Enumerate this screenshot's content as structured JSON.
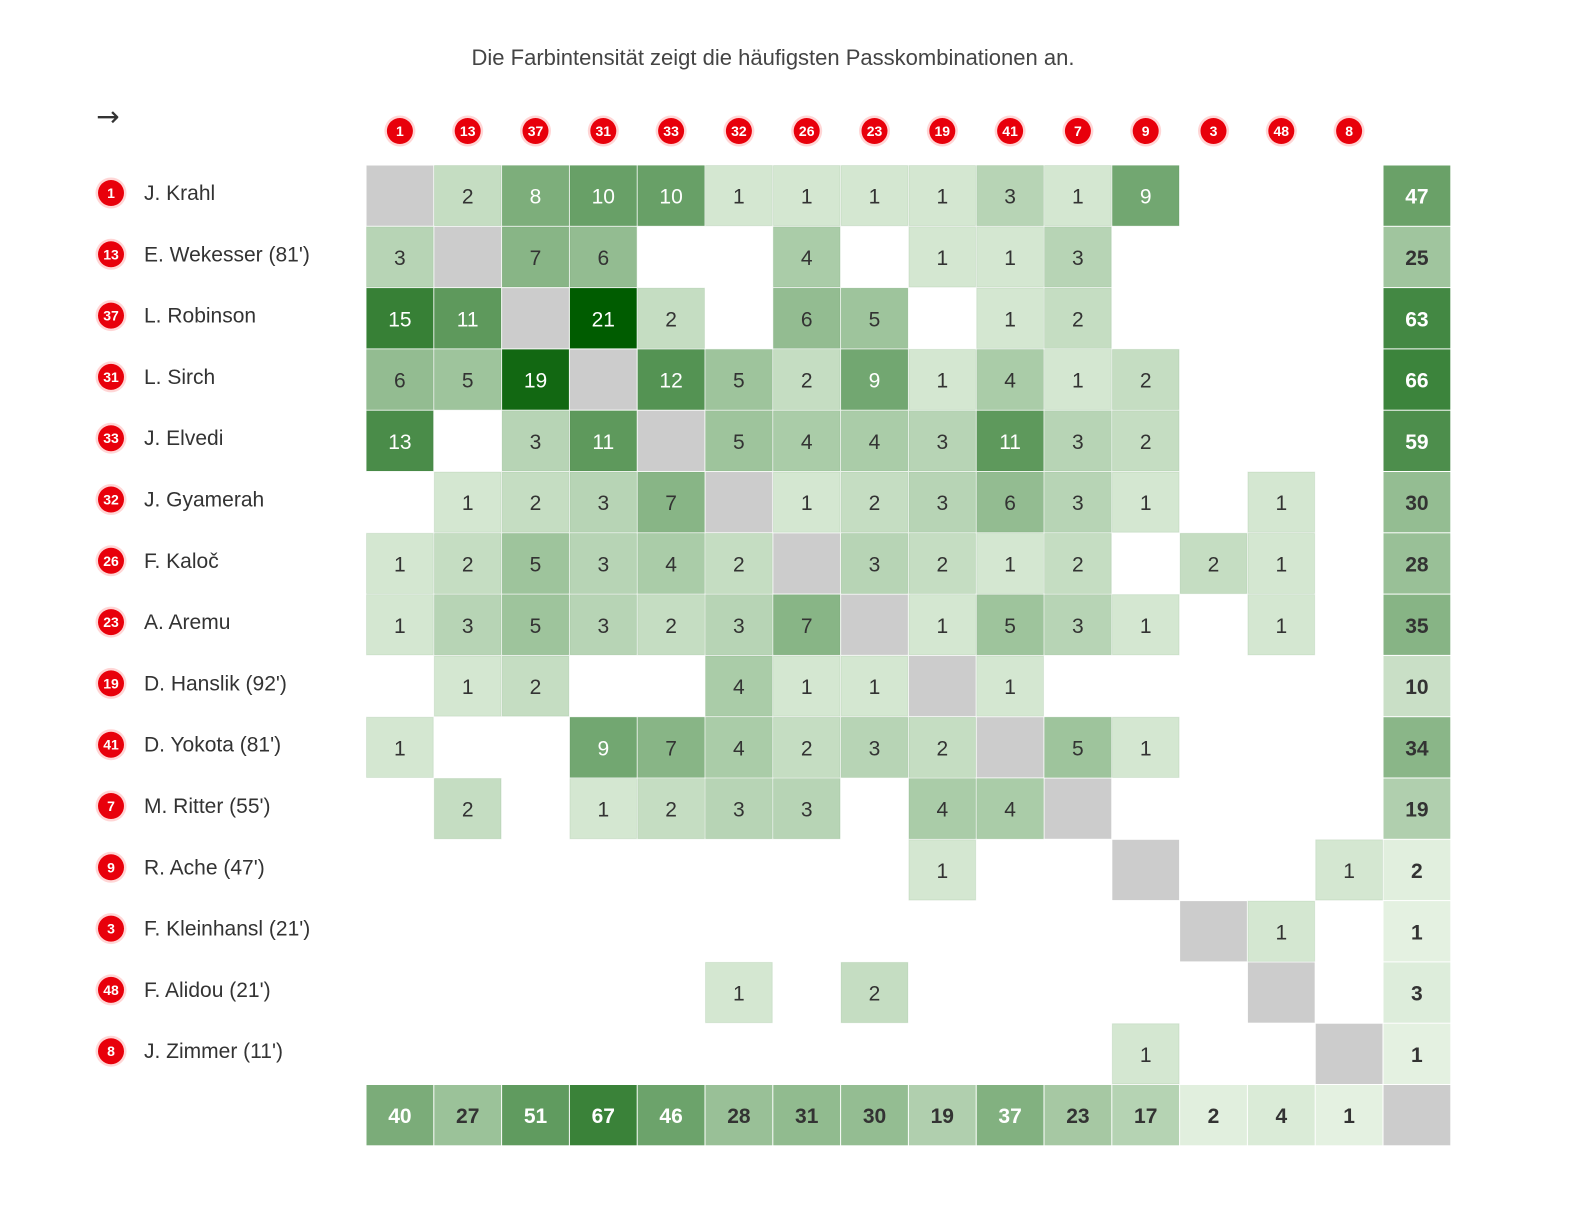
{
  "subtitle": "Die Farbintensität zeigt die häufigsten Passkombinationen an.",
  "direction_glyph": "→",
  "colors": {
    "badge": "#e8000b",
    "badge_ring": "#ffd6d6",
    "diagonal": "#cccccc",
    "scale_low": "#e8f4e5",
    "scale_high": "#005c00"
  },
  "chart_data": {
    "type": "heatmap",
    "title": "Die Farbintensität zeigt die häufigsten Passkombinationen an.",
    "columns": [
      "1",
      "13",
      "37",
      "31",
      "33",
      "32",
      "26",
      "23",
      "19",
      "41",
      "7",
      "9",
      "3",
      "48",
      "8"
    ],
    "rows": [
      {
        "number": "1",
        "name": "J. Krahl",
        "values": [
          null,
          2,
          8,
          10,
          10,
          1,
          1,
          1,
          1,
          3,
          1,
          9,
          null,
          null,
          null
        ],
        "total": 47
      },
      {
        "number": "13",
        "name": "E. Wekesser (81')",
        "values": [
          3,
          null,
          7,
          6,
          null,
          null,
          4,
          null,
          1,
          1,
          3,
          null,
          null,
          null,
          null
        ],
        "total": 25
      },
      {
        "number": "37",
        "name": "L. Robinson",
        "values": [
          15,
          11,
          null,
          21,
          2,
          null,
          6,
          5,
          null,
          1,
          2,
          null,
          null,
          null,
          null
        ],
        "total": 63
      },
      {
        "number": "31",
        "name": "L. Sirch",
        "values": [
          6,
          5,
          19,
          null,
          12,
          5,
          2,
          9,
          1,
          4,
          1,
          2,
          null,
          null,
          null
        ],
        "total": 66
      },
      {
        "number": "33",
        "name": "J. Elvedi",
        "values": [
          13,
          null,
          3,
          11,
          null,
          5,
          4,
          4,
          3,
          11,
          3,
          2,
          null,
          null,
          null
        ],
        "total": 59
      },
      {
        "number": "32",
        "name": "J. Gyamerah",
        "values": [
          null,
          1,
          2,
          3,
          7,
          null,
          1,
          2,
          3,
          6,
          3,
          1,
          null,
          1,
          null
        ],
        "total": 30
      },
      {
        "number": "26",
        "name": "F. Kaloč",
        "values": [
          1,
          2,
          5,
          3,
          4,
          2,
          null,
          3,
          2,
          1,
          2,
          null,
          2,
          1,
          null
        ],
        "total": 28
      },
      {
        "number": "23",
        "name": "A. Aremu",
        "values": [
          1,
          3,
          5,
          3,
          2,
          3,
          7,
          null,
          1,
          5,
          3,
          1,
          null,
          1,
          null
        ],
        "total": 35
      },
      {
        "number": "19",
        "name": "D. Hanslik (92')",
        "values": [
          null,
          1,
          2,
          null,
          null,
          4,
          1,
          1,
          null,
          1,
          null,
          null,
          null,
          null,
          null
        ],
        "total": 10
      },
      {
        "number": "41",
        "name": "D. Yokota (81')",
        "values": [
          1,
          null,
          null,
          9,
          7,
          4,
          2,
          3,
          2,
          null,
          5,
          1,
          null,
          null,
          null
        ],
        "total": 34
      },
      {
        "number": "7",
        "name": "M. Ritter (55')",
        "values": [
          null,
          2,
          null,
          1,
          2,
          3,
          3,
          null,
          4,
          4,
          null,
          null,
          null,
          null,
          null
        ],
        "total": 19
      },
      {
        "number": "9",
        "name": "R. Ache (47')",
        "values": [
          null,
          null,
          null,
          null,
          null,
          null,
          null,
          null,
          1,
          null,
          null,
          null,
          null,
          null,
          1
        ],
        "total": 2
      },
      {
        "number": "3",
        "name": "F. Kleinhansl (21')",
        "values": [
          null,
          null,
          null,
          null,
          null,
          null,
          null,
          null,
          null,
          null,
          null,
          null,
          null,
          1,
          null
        ],
        "total": 1
      },
      {
        "number": "48",
        "name": "F. Alidou (21')",
        "values": [
          null,
          null,
          null,
          null,
          null,
          1,
          null,
          2,
          null,
          null,
          null,
          null,
          null,
          null,
          null
        ],
        "total": 3
      },
      {
        "number": "8",
        "name": "J. Zimmer (11')",
        "values": [
          null,
          null,
          null,
          null,
          null,
          null,
          null,
          null,
          null,
          null,
          null,
          1,
          null,
          null,
          null
        ],
        "total": 1
      }
    ],
    "column_totals": [
      40,
      27,
      51,
      67,
      46,
      28,
      31,
      30,
      19,
      37,
      23,
      17,
      2,
      4,
      1
    ]
  }
}
